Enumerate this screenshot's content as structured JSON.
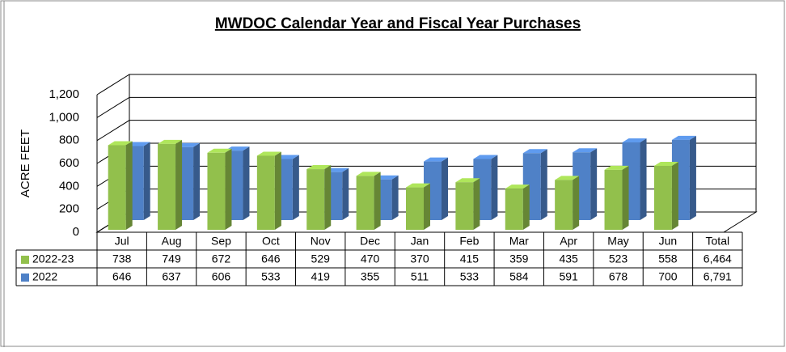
{
  "chart_data": {
    "type": "bar3d",
    "title": "MWDOC  Calendar Year and Fiscal Year Purchases",
    "ylabel": "ACRE FEET",
    "categories": [
      "Jul",
      "Aug",
      "Sep",
      "Oct",
      "Nov",
      "Dec",
      "Jan",
      "Feb",
      "Mar",
      "Apr",
      "May",
      "Jun"
    ],
    "total_label": "Total",
    "series": [
      {
        "name": "2022-23",
        "color": "#92c04c",
        "values": [
          738,
          749,
          672,
          646,
          529,
          470,
          370,
          415,
          359,
          435,
          523,
          558
        ],
        "total": {
          "value": 6464,
          "label": "6,464"
        }
      },
      {
        "name": "2022",
        "color": "#4f81c7",
        "values": [
          646,
          637,
          606,
          533,
          419,
          355,
          511,
          533,
          584,
          591,
          678,
          700
        ],
        "total": {
          "value": 6791,
          "label": "6,791"
        }
      }
    ],
    "ylim": [
      0,
      1200
    ],
    "yticks": [
      0,
      200,
      400,
      600,
      800,
      {
        "value": 1000,
        "label": "1,000"
      },
      {
        "value": 1200,
        "label": "1,200"
      }
    ],
    "grid": true
  }
}
